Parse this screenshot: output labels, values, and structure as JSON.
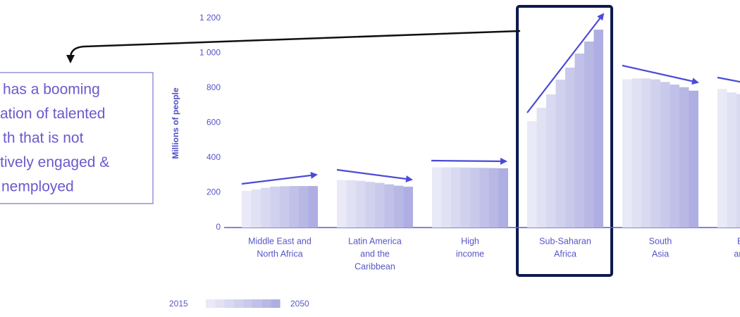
{
  "chart_data": {
    "type": "bar",
    "ylabel": "Millions of people",
    "categories": [
      [
        "Middle East and",
        "North Africa"
      ],
      [
        "Latin America",
        "and the",
        "Caribbean"
      ],
      [
        "High",
        "income"
      ],
      [
        "Sub-Saharan",
        "Africa"
      ],
      [
        "South",
        "Asia"
      ],
      [
        "East Asia",
        "and Pacific"
      ]
    ],
    "values": [
      [
        210,
        218,
        228,
        235,
        237,
        238,
        238,
        238
      ],
      [
        272,
        272,
        268,
        262,
        256,
        248,
        240,
        234
      ],
      [
        345,
        345,
        345,
        344,
        343,
        342,
        341,
        340
      ],
      [
        610,
        687,
        764,
        848,
        917,
        998,
        1067,
        1135
      ],
      [
        850,
        855,
        855,
        850,
        835,
        820,
        805,
        785
      ],
      [
        795,
        775,
        765,
        null,
        null,
        null,
        null,
        null
      ]
    ],
    "colors": [
      "#e9e9f7",
      "#e1e1f4",
      "#d9d9f1",
      "#d1d1ee",
      "#c9c9eb",
      "#c0c0e8",
      "#b8b8e5",
      "#aeaee2"
    ],
    "legend": {
      "start": "2015",
      "end": "2050"
    },
    "ylim": [
      0,
      1200
    ],
    "yticks": [
      0,
      200,
      400,
      600,
      800,
      {
        "value": 1000,
        "label": "1 000"
      },
      {
        "value": 1200,
        "label": "1 200"
      }
    ],
    "grid": false,
    "annotation": [
      "has a booming",
      "ation of talented",
      "th that is not",
      "tively engaged &",
      "nemployed"
    ]
  }
}
